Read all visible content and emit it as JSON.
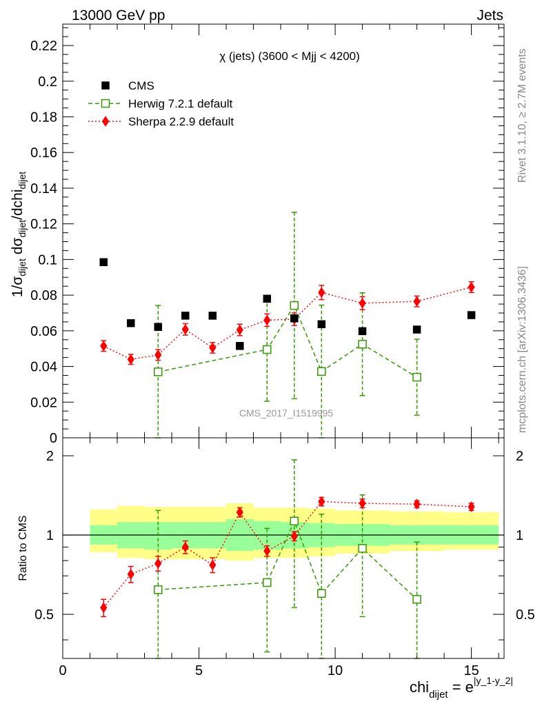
{
  "header": {
    "left": "13000 GeV pp",
    "right": "Jets"
  },
  "side_labels": {
    "rivet": "Rivet 3.1.10, ≥ 2.7M events",
    "mcplots": "mcplots.cern.ch [arXiv:1306.3436]"
  },
  "colors": {
    "cms": "#000000",
    "herwig": "#339900",
    "sherpa": "#ff0000",
    "band_inner": "#99ff99",
    "band_outer": "#ffff88",
    "watermark": "#999999"
  },
  "chart_data": [
    {
      "type": "scatter",
      "title": "χ (jets) (3600 < Mjj < 4200)",
      "watermark": "CMS_2017_I1519995",
      "ylabel": {
        "main": "1/σ",
        "sub1": "dijet",
        "mid": " dσ",
        "sub2": "dijet",
        "end": "/dchi",
        "sub3": "dijet"
      },
      "xlim": [
        0,
        16.2
      ],
      "ylim": [
        0,
        0.232
      ],
      "grid": false,
      "legend_position": "top-left",
      "x_ticks": [
        "0",
        "5",
        "10",
        "15"
      ],
      "y_ticks": [
        "0",
        "0.02",
        "0.04",
        "0.06",
        "0.08",
        "0.1",
        "0.12",
        "0.14",
        "0.16",
        "0.18",
        "0.2",
        "0.22"
      ],
      "series": [
        {
          "name": "CMS",
          "marker": "filled-square",
          "x": [
            1.5,
            2.5,
            3.5,
            4.5,
            5.5,
            6.5,
            7.5,
            8.5,
            9.5,
            11.0,
            13.0,
            15.0
          ],
          "y": [
            0.0985,
            0.0643,
            0.0622,
            0.0685,
            0.0685,
            0.0515,
            0.078,
            0.067,
            0.0637,
            0.0598,
            0.0607,
            0.0688
          ]
        },
        {
          "name": "Herwig 7.2.1 default",
          "marker": "open-square",
          "line": "dashed",
          "x": [
            3.5,
            7.5,
            8.5,
            9.5,
            11.0,
            13.0
          ],
          "y": [
            0.037,
            0.0495,
            0.0742,
            0.0372,
            0.0525,
            0.034
          ],
          "err": [
            0.0372,
            0.029,
            0.0523,
            0.0372,
            0.0288,
            0.0213
          ]
        },
        {
          "name": "Sherpa 2.2.9 default",
          "marker": "filled-diamond",
          "line": "dotted",
          "x": [
            1.5,
            2.5,
            3.5,
            4.5,
            5.5,
            6.5,
            7.5,
            8.5,
            9.5,
            11.0,
            13.0,
            15.0
          ],
          "y": [
            0.0515,
            0.044,
            0.0465,
            0.0608,
            0.0505,
            0.0605,
            0.066,
            0.0665,
            0.0815,
            0.0755,
            0.0765,
            0.0845
          ],
          "err": [
            0.003,
            0.0028,
            0.003,
            0.0032,
            0.003,
            0.0032,
            0.0035,
            0.0035,
            0.004,
            0.0036,
            0.003,
            0.003
          ]
        }
      ]
    },
    {
      "type": "scatter",
      "ylabel": "Ratio to CMS",
      "xlabel": {
        "main": "chi",
        "sub": "dijet",
        "eq": " = e",
        "sup": "|y_1-y_2|"
      },
      "xlim": [
        0,
        16.2
      ],
      "ylim": [
        0.34,
        2.34
      ],
      "reference_line": 1,
      "x_ticks": [
        "0",
        "5",
        "10",
        "15"
      ],
      "y_ticks": [
        "0.5",
        "1",
        "2"
      ],
      "uncertainty_bands": {
        "bins": [
          [
            1,
            2
          ],
          [
            2,
            3
          ],
          [
            3,
            4
          ],
          [
            4,
            5
          ],
          [
            5,
            6
          ],
          [
            6,
            7
          ],
          [
            7,
            8
          ],
          [
            8,
            9
          ],
          [
            9,
            10
          ],
          [
            10,
            12
          ],
          [
            12,
            14
          ],
          [
            14,
            16
          ]
        ],
        "inner_lo": [
          0.92,
          0.89,
          0.88,
          0.89,
          0.89,
          0.87,
          0.88,
          0.89,
          0.9,
          0.91,
          0.92,
          0.92
        ],
        "inner_hi": [
          1.09,
          1.12,
          1.12,
          1.12,
          1.12,
          1.15,
          1.13,
          1.12,
          1.11,
          1.1,
          1.09,
          1.09
        ],
        "outer_lo": [
          0.86,
          0.82,
          0.81,
          0.81,
          0.81,
          0.8,
          0.82,
          0.82,
          0.83,
          0.85,
          0.87,
          0.88
        ],
        "outer_hi": [
          1.25,
          1.29,
          1.28,
          1.28,
          1.28,
          1.32,
          1.27,
          1.27,
          1.26,
          1.24,
          1.23,
          1.22
        ]
      },
      "series": [
        {
          "name": "Herwig 7.2.1 default",
          "x": [
            3.5,
            7.5,
            8.5,
            9.5,
            11.0,
            13.0
          ],
          "y": [
            0.62,
            0.66,
            1.13,
            0.6,
            0.89,
            0.57
          ],
          "err_lo": [
            0.4,
            0.3,
            0.6,
            0.4,
            0.4,
            0.3
          ],
          "err_hi": [
            0.62,
            0.4,
            0.8,
            0.6,
            0.53,
            0.37
          ]
        },
        {
          "name": "Sherpa 2.2.9 default",
          "x": [
            1.5,
            2.5,
            3.5,
            4.5,
            5.5,
            6.5,
            7.5,
            8.5,
            9.5,
            11.0,
            13.0,
            15.0
          ],
          "y": [
            0.53,
            0.71,
            0.78,
            0.9,
            0.77,
            1.22,
            0.87,
            0.99,
            1.34,
            1.32,
            1.31,
            1.28
          ],
          "err": [
            0.04,
            0.05,
            0.05,
            0.05,
            0.05,
            0.05,
            0.04,
            0.04,
            0.05,
            0.05,
            0.04,
            0.04
          ]
        }
      ]
    }
  ]
}
